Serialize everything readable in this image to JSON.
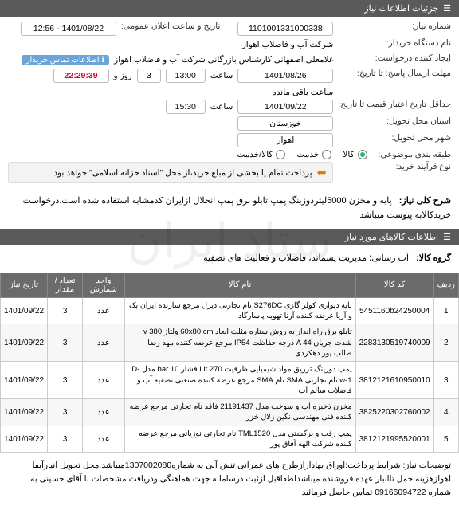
{
  "watermark": {
    "line1": "ستاد ایران",
    "line2": "۰۲۱-۴۱۹۳۴"
  },
  "header": {
    "title": "جزئیات اطلاعات نیاز"
  },
  "fields": {
    "need_no_label": "شماره نیاز:",
    "need_no": "1101001331000338",
    "announce_label": "تاریخ و ساعت اعلان عمومی:",
    "announce": "1401/08/22 - 12:56",
    "buyer_label": "نام دستگاه خریدار:",
    "buyer": "شرکت آب و فاضلاب اهواز",
    "creator_label": "ایجاد کننده درخواست:",
    "creator": "غلامعلی اصفهانی کارشناس بازرگانی شرکت آب و فاضلاب اهواز",
    "contact_tag": "اطلاعات تماس خریدار",
    "deadline_label": "مهلت ارسال پاسخ: تا تاریخ:",
    "deadline_date": "1401/08/26",
    "deadline_time_label": "ساعت",
    "deadline_time": "13:00",
    "remain_label": "روز و",
    "remain_days": "3",
    "remain_time": "22:29:39",
    "remain_suffix": "ساعت باقی مانده",
    "validity_label": "حداقل تاریخ اعتبار قیمت تا تاریخ:",
    "validity_date": "1401/09/22",
    "validity_time_label": "ساعت",
    "validity_time": "15:30",
    "province_label": "استان محل تحویل:",
    "province": "خوزستان",
    "city_label": "شهر محل تحویل:",
    "city": "اهواز",
    "class_label": "طبقه بندی موضوعی:",
    "class_opts": [
      "کالا",
      "خدمت",
      "کالا/خدمت"
    ],
    "class_selected": 0,
    "process_label": "نوع فرآیند خرید:",
    "process_note": "پرداخت تمام یا بخشی از مبلغ خرید،از محل \"اسناد خزانه اسلامی\" خواهد بود"
  },
  "desc": {
    "title_label": "شرح کلی نیاز:",
    "title": "پایه و مخزن 5000لیتردوزینگ پمپ تابلو برق پمپ انحلال ازایران کدمشابه استفاده شده است.درخواست خریدکالابه پیوست میباشد",
    "goods_header": "اطلاعات کالاهای مورد نیاز",
    "group_label": "گروه کالا:",
    "group": "آب رسانی؛ مدیریت پسماند، فاضلاب و فعالیت های تصفیه"
  },
  "table": {
    "columns": [
      "ردیف",
      "کد کالا",
      "نام کالا",
      "واحد شمارش",
      "تعداد / مقدار",
      "تاریخ نیاز"
    ],
    "rows": [
      [
        "1",
        "5451160b24250004",
        "پایه دیواری کولر گازی S276DC نام تجارتی دیزل مرجع سازنده ایران پک و آریا عرضه کننده آرتا تهویه پاسارگاد",
        "عدد",
        "3",
        "1401/09/22"
      ],
      [
        "2",
        "2283130519740009",
        "تابلو برق راه انداز به روش ستاره مثلث ابعاد 60x80 cm ولتاژ v 380 شدت جریان A 44 درجه حفاظت IP54 مرجع عرضه کننده مهد رضا طالب پور دهکردی",
        "عدد",
        "3",
        "1401/09/22"
      ],
      [
        "3",
        "3812121610950010",
        "پمپ دوزینگ تزریق مواد شیمیایی ظرفیت Lit 270 فشار bar 10 مدل D-w-1 نام تجارتی SMA نام SMA مرجع عرضه کننده صنعتی تصفیه آب و فاضلاب سالم آب",
        "عدد",
        "3",
        "1401/09/22"
      ],
      [
        "4",
        "3825220302760002",
        "مخزن ذخیره آب و سوخت مدل 21191437 فاقد نام تجارتی مرجع عرضه کننده فنی مهندسی نگین زلال خزر",
        "عدد",
        "3",
        "1401/09/22"
      ],
      [
        "5",
        "3812121995520001",
        "پمپ رفت و برگشتی مدل TML1520 نام تجارتی نوژیانی مرجع عرضه کننده شرکت الهه آفاق پور",
        "عدد",
        "3",
        "1401/09/22"
      ]
    ]
  },
  "footer": {
    "label": "توضیحات نیاز:",
    "text": "شرایط پرداخت:اوراق بهادارازطرح های عمرانی تنش آبی به شماره1307002080میباشد.محل تحویل انبارآبفا اهوازهزینه حمل تاانبار عهده فروشنده میباشدلطفاقبل ازثبت درسامانه جهت هماهنگی ودریافت مشخصات با آقای حسینی به شماره 09166094722 تماس حاصل فرمائید"
  }
}
